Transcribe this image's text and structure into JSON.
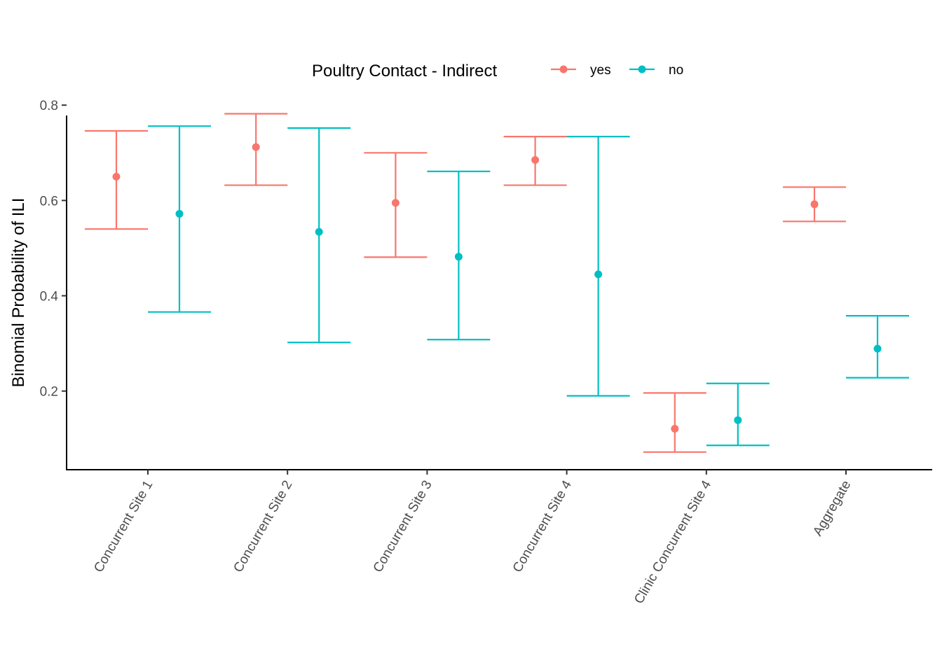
{
  "chart_data": {
    "type": "errorbar",
    "categories": [
      "Concurrent Site 1",
      "Concurrent Site 2",
      "Concurrent Site 3",
      "Concurrent Site 4",
      "Clinic Concurrent Site 4",
      "Aggregate"
    ],
    "ylabel": "Binomial Probability of ILI",
    "xlabel": "",
    "ylim": [
      0.035,
      0.815
    ],
    "yticks": [
      0.2,
      0.4,
      0.6,
      0.8
    ],
    "ytick_labels": [
      "0.2",
      "0.4",
      "0.6",
      "0.8"
    ],
    "grid": false,
    "legend": {
      "title": "Poultry Contact - Indirect",
      "position": "top"
    },
    "series": [
      {
        "name": "yes",
        "color": "#F8766D",
        "estimate": [
          0.65,
          0.712,
          0.595,
          0.685,
          0.121,
          0.592
        ],
        "lower": [
          0.54,
          0.632,
          0.481,
          0.632,
          0.072,
          0.556
        ],
        "upper": [
          0.746,
          0.782,
          0.7,
          0.734,
          0.196,
          0.628
        ]
      },
      {
        "name": "no",
        "color": "#00BFC4",
        "estimate": [
          0.572,
          0.534,
          0.482,
          0.445,
          0.139,
          0.289
        ],
        "lower": [
          0.366,
          0.302,
          0.308,
          0.19,
          0.086,
          0.228
        ],
        "upper": [
          0.756,
          0.752,
          0.661,
          0.734,
          0.216,
          0.358
        ]
      }
    ]
  }
}
